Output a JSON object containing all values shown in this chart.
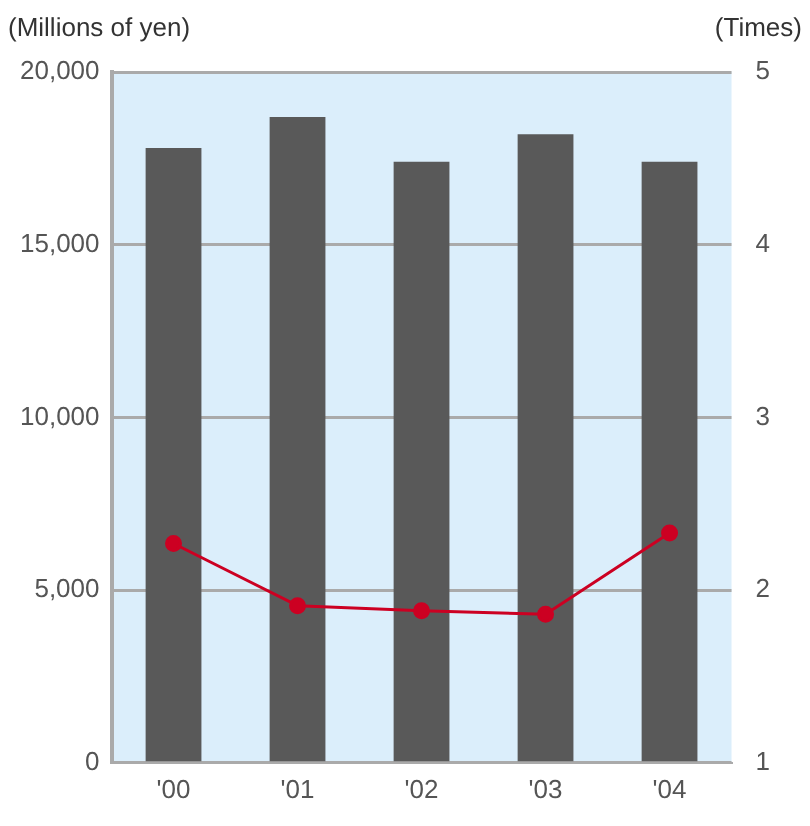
{
  "chart_data": {
    "type": "bar",
    "ylabel": "(Millions of yen)",
    "y2label": "(Times)",
    "categories": [
      "'00",
      "'01",
      "'02",
      "'03",
      "'04"
    ],
    "series": [
      {
        "color": "#595959",
        "values": [
          17800,
          18700,
          17400,
          18200,
          17400
        ]
      },
      {
        "type": "line",
        "axis": "y2",
        "color": "#cc0022",
        "values": [
          2.27,
          1.91,
          1.88,
          1.86,
          2.33
        ]
      }
    ],
    "ylim": [
      0,
      20000
    ],
    "yticks": [
      0,
      {
        "value": 5000,
        "label": "5,000"
      },
      {
        "value": 10000,
        "label": "10,000"
      },
      {
        "value": 15000,
        "label": "15,000"
      },
      {
        "value": 20000,
        "label": "20,000"
      }
    ],
    "y2lim": [
      1,
      5
    ],
    "y2ticks": [
      1,
      2,
      3,
      4,
      5
    ],
    "grid": "y",
    "legend": false,
    "marker": "circle",
    "line_style": "solid"
  }
}
